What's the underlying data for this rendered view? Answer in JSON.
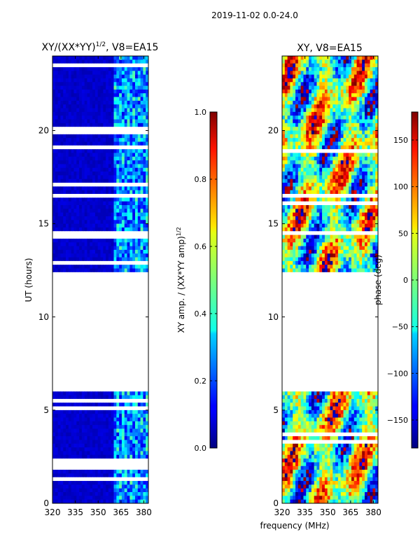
{
  "figure_title": "2019-11-02 0.0-24.0",
  "chart_data": [
    {
      "type": "heatmap",
      "title": "XY/(XX*YY)",
      "title_exponent": "1/2",
      "title_suffix": ", V8=EA15",
      "xlabel": "frequency (MHz)",
      "ylabel": "UT (hours)",
      "xlim": [
        320,
        383
      ],
      "ylim": [
        0,
        24
      ],
      "xticks": [
        320,
        335,
        350,
        365,
        380
      ],
      "yticks": [
        0,
        5,
        10,
        15,
        20
      ],
      "data_gaps_hours": [
        [
          6.05,
          12.25
        ]
      ],
      "colorbar": {
        "label": "XY amp. / (XX*YY amp)",
        "label_exponent": "1/2",
        "range": [
          0.0,
          1.0
        ],
        "ticks": [
          "0.0",
          "0.2",
          "0.4",
          "0.6",
          "0.8",
          "1.0"
        ],
        "colormap": "jet"
      },
      "description_values": {
        "low_band_mhz": [
          320,
          360
        ],
        "low_band_amp": 0.05,
        "high_band_mhz": [
          360,
          383
        ],
        "high_band_amp_range": [
          0.1,
          0.5
        ]
      }
    },
    {
      "type": "heatmap",
      "title": "XY, V8=EA15",
      "xlabel": "frequency (MHz)",
      "xlim": [
        320,
        383
      ],
      "ylim": [
        0,
        24
      ],
      "xticks": [
        320,
        335,
        350,
        365,
        380
      ],
      "yticks": [
        0,
        5,
        10,
        15,
        20
      ],
      "data_gaps_hours": [
        [
          6.05,
          12.25
        ]
      ],
      "colorbar": {
        "label": "phase (deg)",
        "range": [
          -180,
          180
        ],
        "ticks": [
          "-150",
          "-100",
          "-50",
          "0",
          "50",
          "100",
          "150"
        ],
        "colormap": "jet"
      },
      "description_values": {
        "phase_range_deg": [
          -180,
          180
        ]
      }
    }
  ]
}
